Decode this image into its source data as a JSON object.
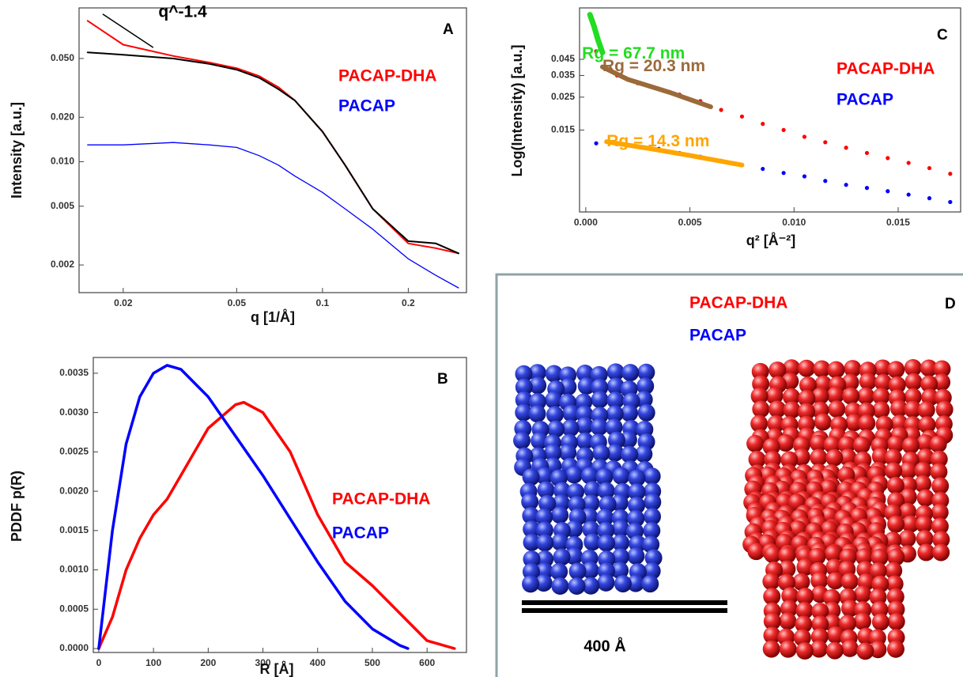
{
  "chart_data": [
    {
      "type": "line",
      "label": "A",
      "x_label": "q [1/Å]",
      "y_label": "Intensity [a.u.]",
      "xlog": true,
      "ylog": true,
      "xlim": [
        0.014,
        0.32
      ],
      "ylim": [
        0.0013,
        0.11
      ],
      "xticks": [
        0.02,
        0.05,
        0.1,
        0.2
      ],
      "yticks": [
        {
          "value": 0.05,
          "label": "0.050"
        },
        {
          "value": 0.02,
          "label": "0.020"
        },
        {
          "value": 0.01,
          "label": "0.010"
        },
        0.005,
        0.002
      ],
      "series": [
        {
          "name": "PACAP-DHA",
          "color": "#ff0000",
          "legend": true,
          "x": [
            0.015,
            0.02,
            0.03,
            0.04,
            0.05,
            0.06,
            0.07,
            0.08,
            0.1,
            0.12,
            0.15,
            0.2,
            0.25,
            0.3
          ],
          "values": [
            0.09,
            0.062,
            0.052,
            0.047,
            0.043,
            0.038,
            0.032,
            0.026,
            0.016,
            0.0095,
            0.0048,
            0.0028,
            0.0026,
            0.0024
          ]
        },
        {
          "name": "PACAP",
          "color": "#0000ff",
          "legend": true,
          "x": [
            0.015,
            0.02,
            0.03,
            0.04,
            0.05,
            0.06,
            0.07,
            0.08,
            0.1,
            0.12,
            0.15,
            0.2,
            0.25,
            0.3
          ],
          "values": [
            0.013,
            0.013,
            0.0135,
            0.013,
            0.0125,
            0.011,
            0.0095,
            0.008,
            0.0062,
            0.0048,
            0.0035,
            0.0022,
            0.0017,
            0.0014
          ]
        },
        {
          "color": "#000000",
          "x": [
            0.015,
            0.02,
            0.03,
            0.04,
            0.05,
            0.06,
            0.07,
            0.08,
            0.1,
            0.12,
            0.15,
            0.2,
            0.25,
            0.3
          ],
          "values": [
            0.055,
            0.053,
            0.05,
            0.046,
            0.042,
            0.037,
            0.031,
            0.026,
            0.016,
            0.0095,
            0.0048,
            0.0029,
            0.0028,
            0.0024
          ]
        },
        {
          "name": "q^-1.4",
          "color": "#000000",
          "x": [
            0.017,
            0.0254
          ],
          "values": [
            0.0996,
            0.0595
          ]
        }
      ]
    },
    {
      "type": "line",
      "label": "B",
      "x_label": "R [Å]",
      "y_label": "PDDF p(R)",
      "xlim": [
        -10,
        672
      ],
      "ylim": [
        -5e-05,
        0.0037
      ],
      "xticks": [
        0,
        100,
        200,
        300,
        400,
        500,
        600
      ],
      "yticks": [
        {
          "value": 0,
          "label": "0.0000"
        },
        {
          "value": 0.0005,
          "label": "0.0005"
        },
        {
          "value": 0.001,
          "label": "0.0010"
        },
        {
          "value": 0.0015,
          "label": "0.0015"
        },
        {
          "value": 0.002,
          "label": "0.0020"
        },
        {
          "value": 0.0025,
          "label": "0.0025"
        },
        {
          "value": 0.003,
          "label": "0.0030"
        },
        {
          "value": 0.0035,
          "label": "0.0035"
        }
      ],
      "series": [
        {
          "name": "PACAP-DHA",
          "color": "#ff0000",
          "legend": true,
          "x": [
            0,
            25,
            50,
            75,
            100,
            125,
            150,
            200,
            250,
            265,
            300,
            350,
            400,
            450,
            500,
            550,
            600,
            650
          ],
          "values": [
            0,
            0.0004,
            0.001,
            0.0014,
            0.0017,
            0.0019,
            0.0022,
            0.0028,
            0.0031,
            0.00313,
            0.003,
            0.0025,
            0.0017,
            0.0011,
            0.0008,
            0.00045,
            0.0001,
            0
          ]
        },
        {
          "name": "PACAP",
          "color": "#0000ff",
          "legend": true,
          "x": [
            0,
            25,
            50,
            75,
            100,
            125,
            150,
            200,
            250,
            300,
            350,
            400,
            450,
            500,
            550,
            565
          ],
          "values": [
            0,
            0.0015,
            0.0026,
            0.0032,
            0.0035,
            0.0036,
            0.00355,
            0.0032,
            0.0027,
            0.0022,
            0.00165,
            0.0011,
            0.0006,
            0.00025,
            4e-05,
            0
          ]
        }
      ]
    },
    {
      "type": "scatter",
      "label": "C",
      "x_label": "q² [Å⁻²]",
      "y_label": "Log(Intensity) [a.u.]",
      "ylog": true,
      "xlim": [
        -0.0003,
        0.018
      ],
      "ylim": [
        0.0042,
        0.1
      ],
      "xticks": [
        {
          "value": 0,
          "label": "0.000"
        },
        0.005,
        {
          "value": 0.01,
          "label": "0.010"
        },
        0.015
      ],
      "yticks": [
        0.045,
        0.035,
        0.025,
        0.015
      ],
      "series": [
        {
          "name": "PACAP-DHA",
          "color": "#ff0000",
          "legend": true,
          "x": [
            0.0005,
            0.0015,
            0.0025,
            0.0035,
            0.0045,
            0.0055,
            0.0065,
            0.0075,
            0.0085,
            0.0095,
            0.0105,
            0.0115,
            0.0125,
            0.0135,
            0.0145,
            0.0155,
            0.0165,
            0.0175
          ],
          "values": [
            0.051,
            0.035,
            0.031,
            0.0285,
            0.026,
            0.0235,
            0.0205,
            0.0185,
            0.0165,
            0.015,
            0.0135,
            0.0124,
            0.0114,
            0.0105,
            0.0097,
            0.009,
            0.0083,
            0.0076
          ]
        },
        {
          "name": "PACAP",
          "color": "#0000ff",
          "legend": true,
          "x": [
            0.0005,
            0.0015,
            0.0025,
            0.0035,
            0.0045,
            0.0055,
            0.0065,
            0.0075,
            0.0085,
            0.0095,
            0.0105,
            0.0115,
            0.0125,
            0.0135,
            0.0145,
            0.0155,
            0.0165,
            0.0175
          ],
          "values": [
            0.0122,
            0.0122,
            0.0116,
            0.0112,
            0.0105,
            0.0099,
            0.0093,
            0.0087,
            0.0082,
            0.0077,
            0.0073,
            0.0068,
            0.0064,
            0.0061,
            0.0058,
            0.0055,
            0.0052,
            0.0049
          ]
        },
        {
          "name": "Rg = 67.7 nm",
          "color": "#22dd22",
          "type": "line",
          "x": [
            0.0002,
            0.0004,
            0.0006,
            0.0008
          ],
          "values": [
            0.09,
            0.075,
            0.06,
            0.05
          ]
        },
        {
          "name": "Rg = 20.3 nm",
          "color": "#9b6a3a",
          "type": "line",
          "x": [
            0.0008,
            0.002,
            0.004,
            0.006
          ],
          "values": [
            0.04,
            0.033,
            0.027,
            0.0215
          ]
        },
        {
          "name": "Rg = 14.3 nm",
          "color": "#ffa500",
          "type": "line",
          "x": [
            0.001,
            0.003,
            0.005,
            0.0075
          ],
          "values": [
            0.0125,
            0.0113,
            0.0101,
            0.0087
          ]
        }
      ]
    }
  ],
  "panel_d": {
    "label": "D",
    "legend": [
      {
        "name": "PACAP-DHA",
        "color": "#ff0000"
      },
      {
        "name": "PACAP",
        "color": "#0000ff"
      }
    ],
    "scale_bar": "400 Å"
  }
}
